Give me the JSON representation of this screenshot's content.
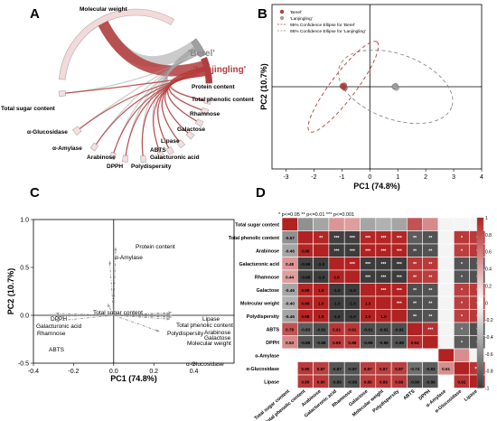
{
  "figure": {
    "panels": {
      "A": "A",
      "B": "B",
      "C": "C",
      "D": "D"
    }
  },
  "chart_data": [
    {
      "panel": "A",
      "type": "chord",
      "groups": [
        "'Berel'",
        "'Lanjingling'"
      ],
      "colors": {
        "'Berel'": "#a0a0a0",
        "'Lanjingling'": "#b43c3c"
      },
      "variables": [
        "Molecular weight",
        "Protein content",
        "Total phenolic content",
        "Rhamnose",
        "Galactose",
        "Lipase",
        "ABTS",
        "Galacturonic acid",
        "Polydispersity",
        "DPPH",
        "Arabinose",
        "α-Amylase",
        "α-Glucosidase",
        "Total sugar content"
      ]
    },
    {
      "panel": "B",
      "type": "scatter",
      "xlabel": "PC1 (74.8%)",
      "ylabel": "PC2 (10.7%)",
      "xlim": [
        -3.5,
        4
      ],
      "ylim": [
        -0.3,
        0.3
      ],
      "xticks": [
        -3,
        -2,
        -1,
        0,
        1,
        2,
        3,
        4
      ],
      "yticks": [],
      "legend": {
        "placement": "top-left",
        "entries": [
          "'Berel'",
          "'Lanjingling'",
          "95% Confidence Ellipse for 'Berel'",
          "95% Confidence Ellipse for 'Lanjingling'"
        ]
      },
      "series": [
        {
          "name": "'Berel'",
          "color": "#b43c3c",
          "points": [
            [
              -0.95,
              0.0
            ],
            [
              -0.92,
              0.005
            ],
            [
              -0.9,
              -0.005
            ],
            [
              -0.98,
              0.002
            ]
          ]
        },
        {
          "name": "'Lanjingling'",
          "color": "#a0a0a0",
          "points": [
            [
              0.88,
              0.0
            ],
            [
              0.92,
              0.003
            ],
            [
              0.95,
              -0.004
            ],
            [
              0.9,
              0.001
            ]
          ]
        }
      ]
    },
    {
      "panel": "C",
      "type": "biplot",
      "xlabel": "PC1 (74.8%)",
      "ylabel": "PC2 (10.7%)",
      "xlim": [
        -0.4,
        0.6
      ],
      "ylim": [
        -0.5,
        1.0
      ],
      "xticks": [
        -0.4,
        -0.2,
        0.0,
        0.2,
        0.4
      ],
      "yticks": [
        -0.5,
        0.0,
        0.5,
        1.0
      ],
      "vectors": [
        {
          "label": "Protein content",
          "x": 0.01,
          "y": 0.71
        },
        {
          "label": "α-Amylase",
          "x": -0.02,
          "y": 0.57
        },
        {
          "label": "Total sugar content",
          "x": -0.03,
          "y": 0.12
        },
        {
          "label": "Lipase",
          "x": 0.29,
          "y": 0.03
        },
        {
          "label": "Total phenolic content",
          "x": 0.28,
          "y": 0.015
        },
        {
          "label": "Arabinose",
          "x": 0.29,
          "y": 0.0
        },
        {
          "label": "Polydispersity",
          "x": 0.28,
          "y": -0.01
        },
        {
          "label": "Galactose",
          "x": 0.29,
          "y": -0.02
        },
        {
          "label": "Molecular weight",
          "x": 0.28,
          "y": -0.04
        },
        {
          "label": "α-Glucosidase",
          "x": 0.23,
          "y": -0.17
        },
        {
          "label": "DPPH",
          "x": -0.29,
          "y": 0.02
        },
        {
          "label": "Galacturonic acid",
          "x": -0.29,
          "y": 0.0
        },
        {
          "label": "Rhamnose",
          "x": -0.29,
          "y": -0.01
        },
        {
          "label": "ABTS",
          "x": -0.29,
          "y": -0.06
        }
      ]
    },
    {
      "panel": "D",
      "type": "heatmap",
      "significance": "* p<=0.05   ** p<=0.01   *** p<=0.001",
      "labels": [
        "Total sugar content",
        "Total phenolic content",
        "Arabinose",
        "Galacturonic acid",
        "Rhamnose",
        "Galactose",
        "Molecular weight",
        "Polydispersity",
        "ABTS",
        "DPPH",
        "α-Amylase",
        "α-Glucosidase",
        "Lipase"
      ],
      "colorbar": {
        "min": -1,
        "max": 1,
        "ticks": [
          "1",
          "0.8",
          "0.6",
          "0.4",
          "0.2",
          "0",
          "-0.2",
          "-0.4",
          "-0.6",
          "-0.8",
          "-1"
        ]
      },
      "lower_values": [
        [],
        [
          "-0.57"
        ],
        [
          "-0.46",
          "0.98"
        ],
        [
          "0.48",
          "-0.98",
          "-1.0"
        ],
        [
          "0.44",
          "-0.98",
          "-1.0",
          "1.0"
        ],
        [
          "-0.46",
          "0.98",
          "1.0",
          "-1.0",
          "-1.0"
        ],
        [
          "-0.40",
          "0.98",
          "1.0",
          "-1.0",
          "-1.0",
          "1.0"
        ],
        [
          "-0.46",
          "0.98",
          "1.0",
          "-1.0",
          "-1.0",
          "1.0",
          "1.0"
        ],
        [
          "0.78",
          "-0.83",
          "-0.91",
          "0.91",
          "0.91",
          "-0.91",
          "-0.91",
          "-0.91"
        ],
        [
          "0.53",
          "-0.88",
          "-0.88",
          "0.89",
          "0.88",
          "-0.88",
          "-0.88",
          "-0.88",
          "0.94"
        ],
        [
          "",
          "",
          "",
          "",
          "",
          "",
          "",
          "",
          "",
          ""
        ],
        [
          "",
          "0.90",
          "0.87",
          "-0.87",
          "-0.87",
          "0.87",
          "0.87",
          "0.87",
          "-0.74",
          "-0.83",
          "0.51"
        ],
        [
          "",
          "0.89",
          "0.90",
          "-0.89",
          "-0.89",
          "0.89",
          "0.89",
          "0.89",
          "-0.90",
          "-0.88",
          "",
          "0.92"
        ]
      ],
      "upper_stars": [
        [
          "",
          "",
          "",
          "",
          "",
          "",
          "",
          "",
          "",
          "",
          "",
          ""
        ],
        [
          "**",
          "***",
          "***",
          "***",
          "***",
          "***",
          "**",
          "**",
          "",
          "*",
          "*"
        ],
        [
          "***",
          "***",
          "***",
          "***",
          "***",
          "**",
          "**",
          "",
          "*",
          "*"
        ],
        [
          "***",
          "***",
          "***",
          "***",
          "**",
          "**",
          "",
          "*",
          "*"
        ],
        [
          "***",
          "***",
          "***",
          "**",
          "**",
          "",
          "*",
          "*"
        ],
        [
          "***",
          "***",
          "**",
          "**",
          "",
          "*",
          "*"
        ],
        [
          "***",
          "**",
          "**",
          "",
          "*",
          "*"
        ],
        [
          "**",
          "**",
          "",
          "*",
          "*"
        ],
        [
          "***",
          "",
          "*",
          "*"
        ],
        [
          "",
          "*",
          "*"
        ],
        [
          "",
          ""
        ],
        [
          "***"
        ]
      ]
    }
  ]
}
